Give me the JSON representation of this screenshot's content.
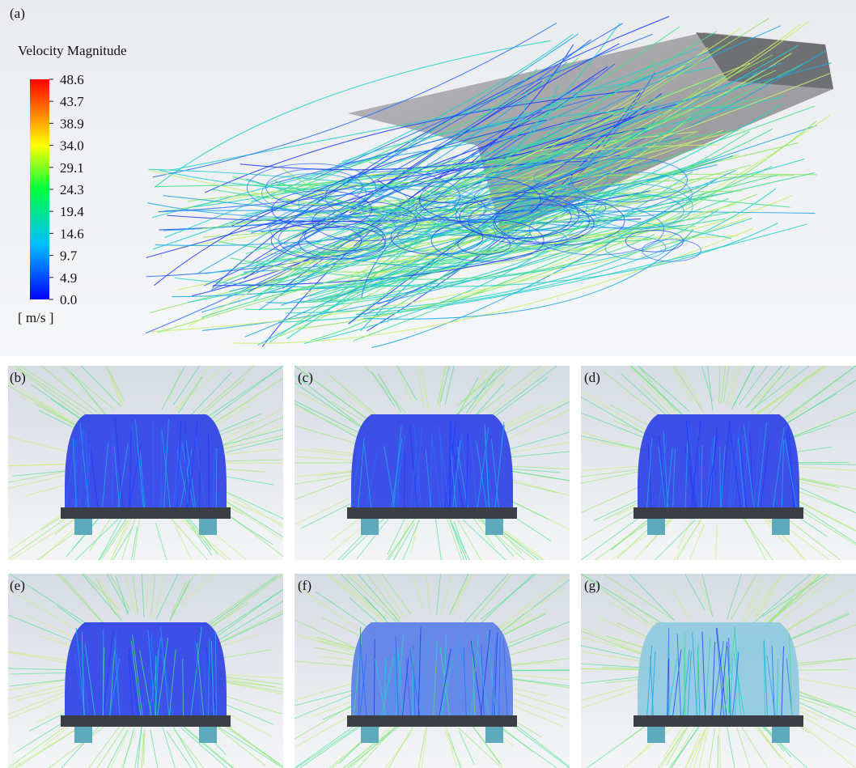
{
  "panels": [
    {
      "label": "(a)"
    },
    {
      "label": "(b)"
    },
    {
      "label": "(c)"
    },
    {
      "label": "(d)"
    },
    {
      "label": "(e)"
    },
    {
      "label": "(f)"
    },
    {
      "label": "(g)"
    }
  ],
  "colorbar": {
    "title": "Velocity Magnitude",
    "ticks": [
      "48.6",
      "43.7",
      "38.9",
      "34.0",
      "29.1",
      "24.3",
      "19.4",
      "14.6",
      "9.7",
      "4.9",
      "0.0"
    ],
    "unit": "[ m/s ]"
  }
}
